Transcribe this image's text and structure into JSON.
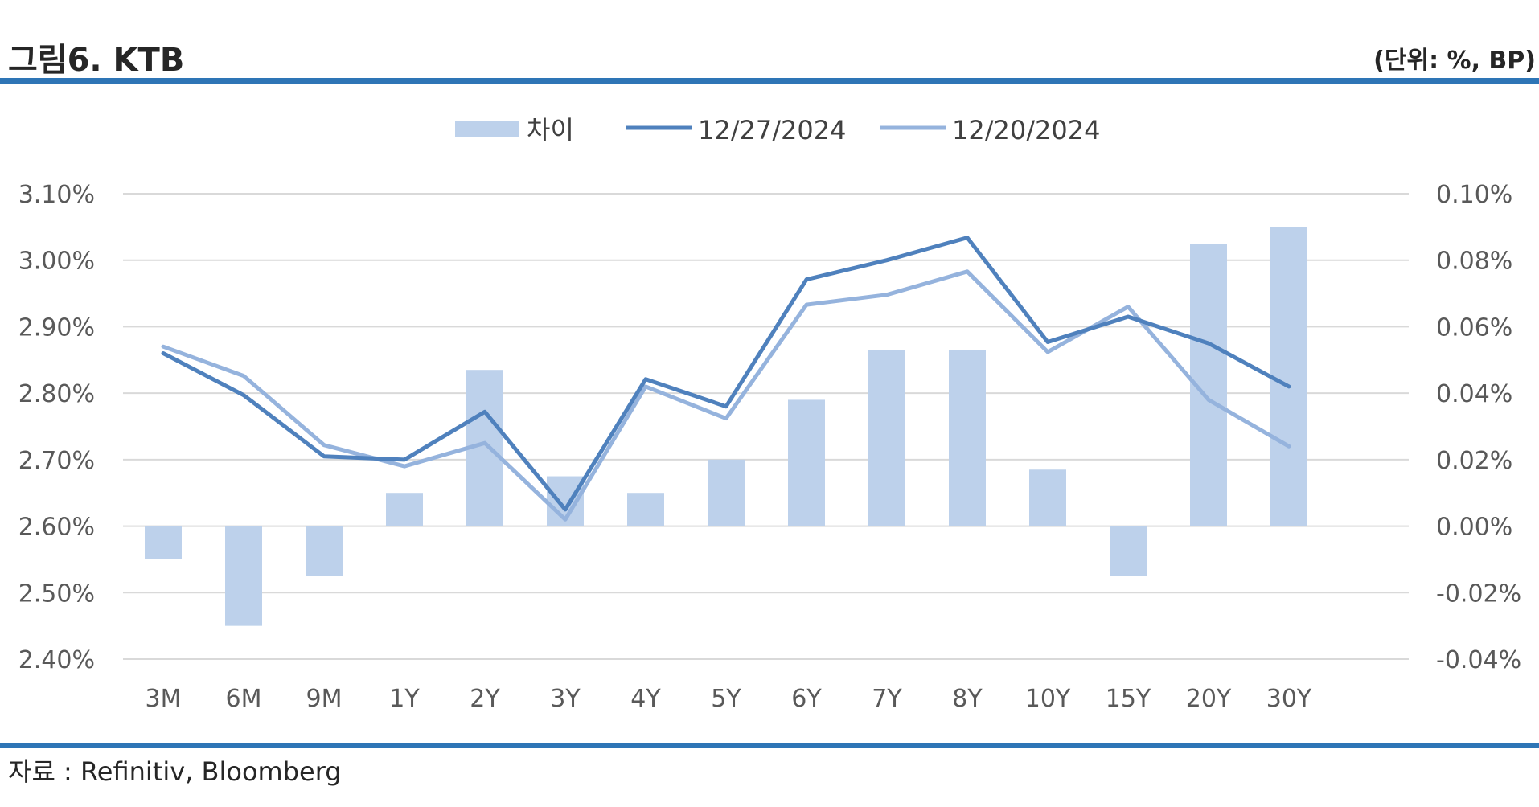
{
  "header": {
    "title": "그림6. KTB",
    "unit": "(단위: %, BP)"
  },
  "footer": {
    "source": "자료 : Refinitiv, Bloomberg"
  },
  "colors": {
    "rule": "#2e75b6",
    "bar": "#bdd1eb",
    "line_current": "#4f81bd",
    "line_previous": "#95b3dd",
    "grid": "#d9d9d9"
  },
  "chart_data": {
    "type": "bar",
    "categories": [
      "3M",
      "6M",
      "9M",
      "1Y",
      "2Y",
      "3Y",
      "4Y",
      "5Y",
      "6Y",
      "7Y",
      "8Y",
      "10Y",
      "15Y",
      "20Y",
      "30Y"
    ],
    "series": [
      {
        "name": "차이",
        "type": "bar",
        "axis": "right",
        "values": [
          -0.01,
          -0.03,
          -0.015,
          0.01,
          0.047,
          0.015,
          0.01,
          0.02,
          0.038,
          0.053,
          0.053,
          0.017,
          -0.015,
          0.085,
          0.09
        ]
      },
      {
        "name": "12/27/2024",
        "type": "line",
        "axis": "left",
        "values": [
          2.86,
          2.797,
          2.705,
          2.7,
          2.772,
          2.625,
          2.821,
          2.78,
          2.971,
          3.0,
          3.034,
          2.877,
          2.915,
          2.875,
          2.81
        ]
      },
      {
        "name": "12/20/2024",
        "type": "line",
        "axis": "left",
        "values": [
          2.87,
          2.826,
          2.722,
          2.69,
          2.725,
          2.61,
          2.81,
          2.762,
          2.933,
          2.948,
          2.983,
          2.862,
          2.93,
          2.79,
          2.72
        ]
      }
    ],
    "y_left": {
      "min": 2.4,
      "max": 3.1,
      "ticks": [
        "2.40%",
        "2.50%",
        "2.60%",
        "2.70%",
        "2.80%",
        "2.90%",
        "3.00%",
        "3.10%"
      ]
    },
    "y_right": {
      "min": -0.04,
      "max": 0.1,
      "ticks": [
        "-0.04%",
        "-0.02%",
        "0.00%",
        "0.02%",
        "0.04%",
        "0.06%",
        "0.08%",
        "0.10%"
      ]
    },
    "grid": true,
    "legend": "top-center"
  }
}
